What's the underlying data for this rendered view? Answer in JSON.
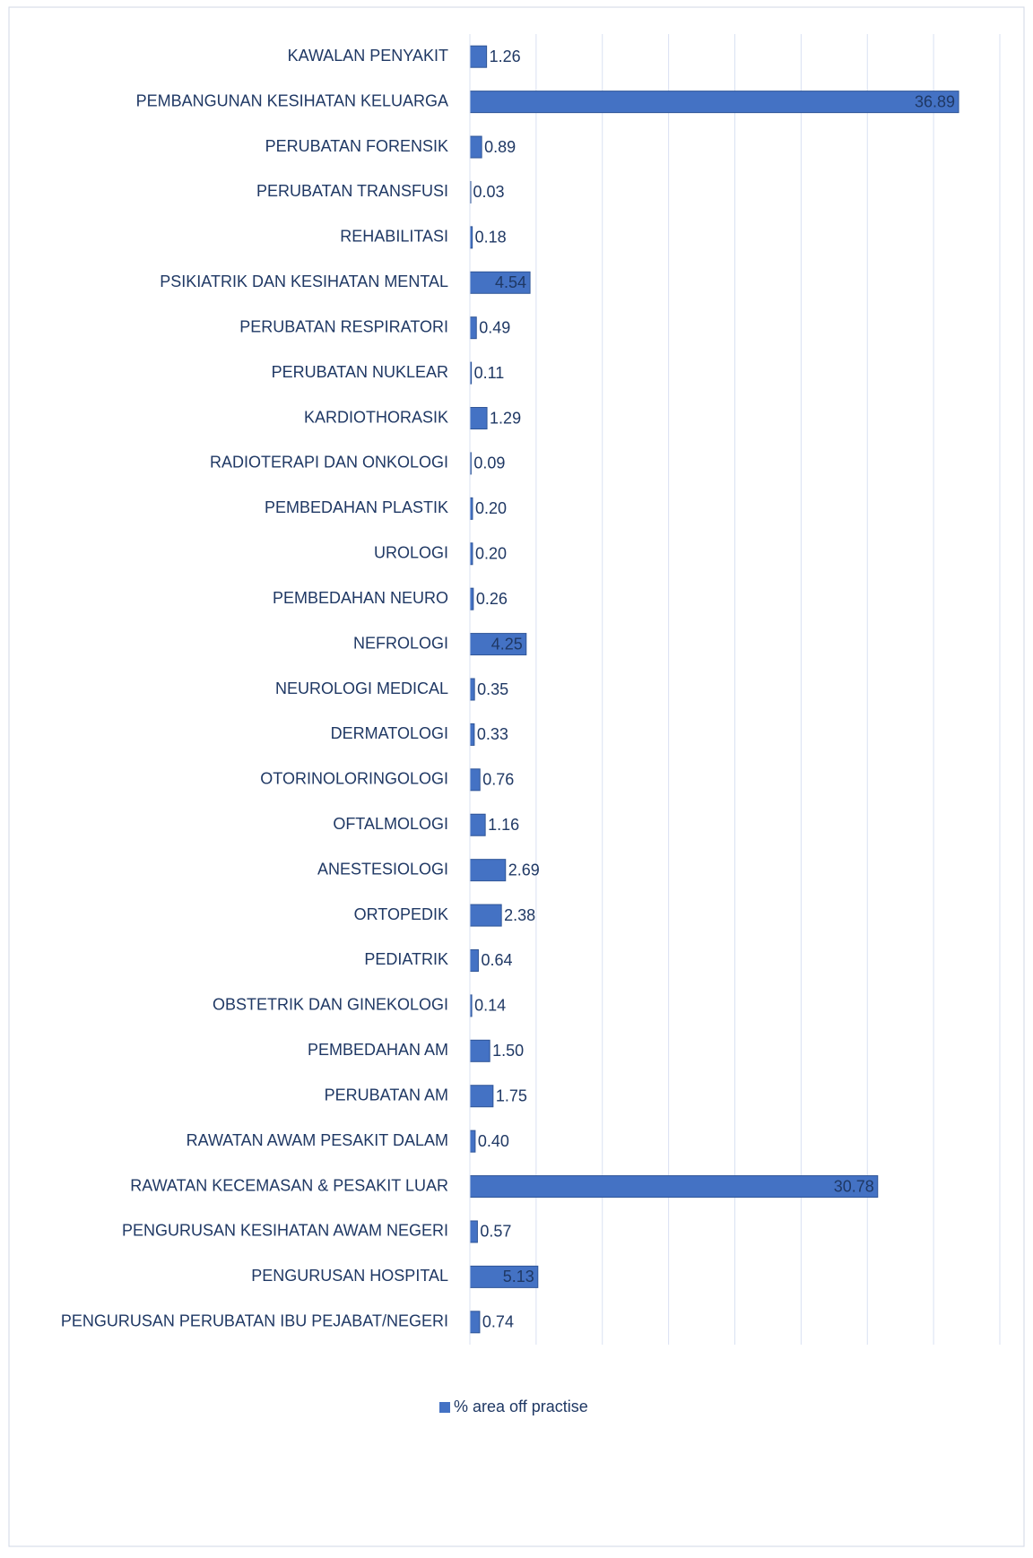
{
  "chart_data": {
    "type": "bar",
    "orientation": "horizontal",
    "categories": [
      "KAWALAN PENYAKIT",
      "PEMBANGUNAN KESIHATAN KELUARGA",
      "PERUBATAN FORENSIK",
      "PERUBATAN TRANSFUSI",
      "REHABILITASI",
      "PSIKIATRIK DAN KESIHATAN MENTAL",
      "PERUBATAN RESPIRATORI",
      "PERUBATAN NUKLEAR",
      "KARDIOTHORASIK",
      "RADIOTERAPI DAN ONKOLOGI",
      "PEMBEDAHAN PLASTIK",
      "UROLOGI",
      "PEMBEDAHAN NEURO",
      "NEFROLOGI",
      "NEUROLOGI MEDICAL",
      "DERMATOLOGI",
      "OTORINOLORINGOLOGI",
      "OFTALMOLOGI",
      "ANESTESIOLOGI",
      "ORTOPEDIK",
      "PEDIATRIK",
      "OBSTETRIK DAN GINEKOLOGI",
      "PEMBEDAHAN AM",
      "PERUBATAN AM",
      "RAWATAN AWAM PESAKIT DALAM",
      "RAWATAN KECEMASAN & PESAKIT LUAR",
      "PENGURUSAN KESIHATAN AWAM NEGERI",
      "PENGURUSAN HOSPITAL",
      "PENGURUSAN PERUBATAN IBU PEJABAT/NEGERI"
    ],
    "series": [
      {
        "name": "% area off practise",
        "color": "#4472c4",
        "values": [
          1.26,
          36.89,
          0.89,
          0.03,
          0.18,
          4.54,
          0.49,
          0.11,
          1.29,
          0.09,
          0.2,
          0.2,
          0.26,
          4.25,
          0.35,
          0.33,
          0.76,
          1.16,
          2.69,
          2.38,
          0.64,
          0.14,
          1.5,
          1.75,
          0.4,
          30.78,
          0.57,
          5.13,
          0.74
        ],
        "value_labels": [
          "1.26",
          "36.89",
          "0.89",
          "0.03",
          "0.18",
          "4.54",
          "0.49",
          "0.11",
          "1.29",
          "0.09",
          "0.20",
          "0.20",
          "0.26",
          "4.25",
          "0.35",
          "0.33",
          "0.76",
          "1.16",
          "2.69",
          "2.38",
          "0.64",
          "0.14",
          "1.50",
          "1.75",
          "0.40",
          "30.78",
          "0.57",
          "5.13",
          "0.74"
        ]
      }
    ],
    "xlim": [
      0,
      40
    ],
    "xticks": [
      0,
      5,
      10,
      15,
      20,
      25,
      30,
      35,
      40
    ],
    "grid": true,
    "legend": "bottom"
  }
}
